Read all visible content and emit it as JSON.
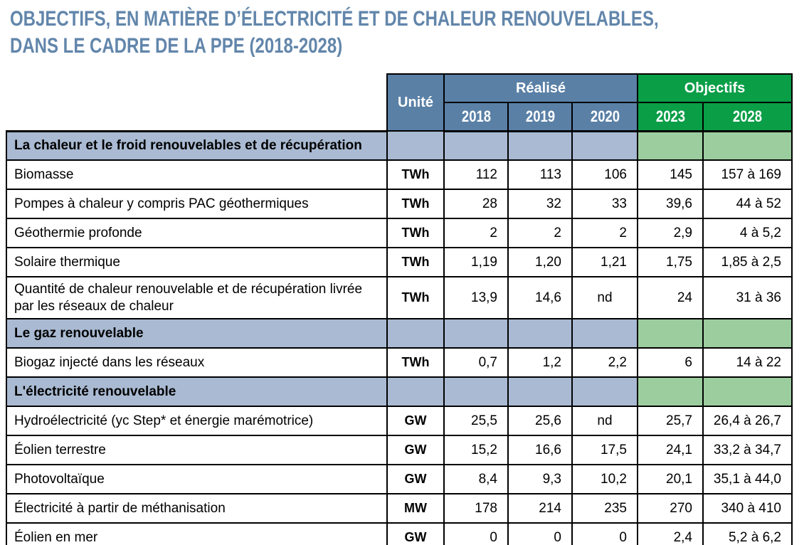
{
  "title": {
    "line1": "OBJECTIFS, EN MATIÈRE D’ÉLECTRICITÉ ET DE CHALEUR RENOUVELABLES,",
    "line2": "DANS LE CADRE DE LA PPE (2018-2028)"
  },
  "colors": {
    "title_blue": "#6286ab",
    "header_blue": "#5a80a6",
    "header_green": "#0a9e47",
    "section_blue": "#a9bad2",
    "section_green": "#9ccd9e",
    "border": "#000000"
  },
  "table": {
    "unit_header": "Unité",
    "realise_header": "Réalisé",
    "objectifs_header": "Objectifs",
    "years": [
      "2018",
      "2019",
      "2020",
      "2023",
      "2028"
    ],
    "rows": [
      {
        "type": "section",
        "label": "La chaleur et le froid renouvelables et de récupération"
      },
      {
        "type": "data",
        "label": "Biomasse",
        "unit": "TWh",
        "values": [
          "112",
          "113",
          "106",
          "145",
          "157 à 169"
        ]
      },
      {
        "type": "data",
        "label": "Pompes à chaleur y compris PAC géothermiques",
        "unit": "TWh",
        "values": [
          "28",
          "32",
          "33",
          "39,6",
          "44 à 52"
        ]
      },
      {
        "type": "data",
        "label": "Géothermie profonde",
        "unit": "TWh",
        "values": [
          "2",
          "2",
          "2",
          "2,9",
          "4 à 5,2"
        ]
      },
      {
        "type": "data",
        "label": "Solaire thermique",
        "unit": "TWh",
        "values": [
          "1,19",
          "1,20",
          "1,21",
          "1,75",
          "1,85 à 2,5"
        ]
      },
      {
        "type": "data",
        "label": "Quantité de chaleur renouvelable et de récupération livrée par les réseaux de chaleur",
        "unit": "TWh",
        "values": [
          "13,9",
          "14,6",
          "nd",
          "24",
          "31 à 36"
        ]
      },
      {
        "type": "section",
        "label": "Le gaz renouvelable"
      },
      {
        "type": "data",
        "label": "Biogaz injecté dans les réseaux",
        "unit": "TWh",
        "values": [
          "0,7",
          "1,2",
          "2,2",
          "6",
          "14 à 22"
        ]
      },
      {
        "type": "section",
        "label": "L'électricité renouvelable"
      },
      {
        "type": "data",
        "label": "Hydroélectricité (yc Step* et énergie marémotrice)",
        "unit": "GW",
        "values": [
          "25,5",
          "25,6",
          "nd",
          "25,7",
          "26,4 à 26,7"
        ]
      },
      {
        "type": "data",
        "label": "Éolien terrestre",
        "unit": "GW",
        "values": [
          "15,2",
          "16,6",
          "17,5",
          "24,1",
          "33,2 à 34,7"
        ]
      },
      {
        "type": "data",
        "label": "Photovoltaïque",
        "unit": "GW",
        "values": [
          "8,4",
          "9,3",
          "10,2",
          "20,1",
          "35,1 à 44,0"
        ]
      },
      {
        "type": "data",
        "label": "Électricité à partir de méthanisation",
        "unit": "MW",
        "values": [
          "178",
          "214",
          "235",
          "270",
          "340 à 410"
        ]
      },
      {
        "type": "data",
        "label": "Éolien en mer",
        "unit": "GW",
        "values": [
          "0",
          "0",
          "0",
          "2,4",
          "5,2 à 6,2"
        ]
      }
    ]
  },
  "chart_data": {
    "type": "table",
    "title": "OBJECTIFS, EN MATIÈRE D’ÉLECTRICITÉ ET DE CHALEUR RENOUVELABLES, DANS LE CADRE DE LA PPE (2018-2028)",
    "column_groups": [
      {
        "label": "Réalisé",
        "columns": [
          "2018",
          "2019",
          "2020"
        ]
      },
      {
        "label": "Objectifs",
        "columns": [
          "2023",
          "2028"
        ]
      }
    ],
    "columns": [
      "Unité",
      "2018",
      "2019",
      "2020",
      "2023",
      "2028"
    ],
    "sections": [
      {
        "section": "La chaleur et le froid renouvelables et de récupération",
        "rows": [
          {
            "label": "Biomasse",
            "unit": "TWh",
            "2018": "112",
            "2019": "113",
            "2020": "106",
            "2023": "145",
            "2028": "157 à 169"
          },
          {
            "label": "Pompes à chaleur y compris PAC géothermiques",
            "unit": "TWh",
            "2018": "28",
            "2019": "32",
            "2020": "33",
            "2023": "39,6",
            "2028": "44 à 52"
          },
          {
            "label": "Géothermie profonde",
            "unit": "TWh",
            "2018": "2",
            "2019": "2",
            "2020": "2",
            "2023": "2,9",
            "2028": "4 à 5,2"
          },
          {
            "label": "Solaire thermique",
            "unit": "TWh",
            "2018": "1,19",
            "2019": "1,20",
            "2020": "1,21",
            "2023": "1,75",
            "2028": "1,85 à 2,5"
          },
          {
            "label": "Quantité de chaleur renouvelable et de récupération livrée par les réseaux de chaleur",
            "unit": "TWh",
            "2018": "13,9",
            "2019": "14,6",
            "2020": "nd",
            "2023": "24",
            "2028": "31 à 36"
          }
        ]
      },
      {
        "section": "Le gaz renouvelable",
        "rows": [
          {
            "label": "Biogaz injecté dans les réseaux",
            "unit": "TWh",
            "2018": "0,7",
            "2019": "1,2",
            "2020": "2,2",
            "2023": "6",
            "2028": "14 à 22"
          }
        ]
      },
      {
        "section": "L'électricité renouvelable",
        "rows": [
          {
            "label": "Hydroélectricité (yc Step* et énergie marémotrice)",
            "unit": "GW",
            "2018": "25,5",
            "2019": "25,6",
            "2020": "nd",
            "2023": "25,7",
            "2028": "26,4 à 26,7"
          },
          {
            "label": "Éolien terrestre",
            "unit": "GW",
            "2018": "15,2",
            "2019": "16,6",
            "2020": "17,5",
            "2023": "24,1",
            "2028": "33,2 à 34,7"
          },
          {
            "label": "Photovoltaïque",
            "unit": "GW",
            "2018": "8,4",
            "2019": "9,3",
            "2020": "10,2",
            "2023": "20,1",
            "2028": "35,1 à 44,0"
          },
          {
            "label": "Électricité à partir de méthanisation",
            "unit": "MW",
            "2018": "178",
            "2019": "214",
            "2020": "235",
            "2023": "270",
            "2028": "340 à 410"
          },
          {
            "label": "Éolien en mer",
            "unit": "GW",
            "2018": "0",
            "2019": "0",
            "2020": "0",
            "2023": "2,4",
            "2028": "5,2 à 6,2"
          }
        ]
      }
    ]
  }
}
